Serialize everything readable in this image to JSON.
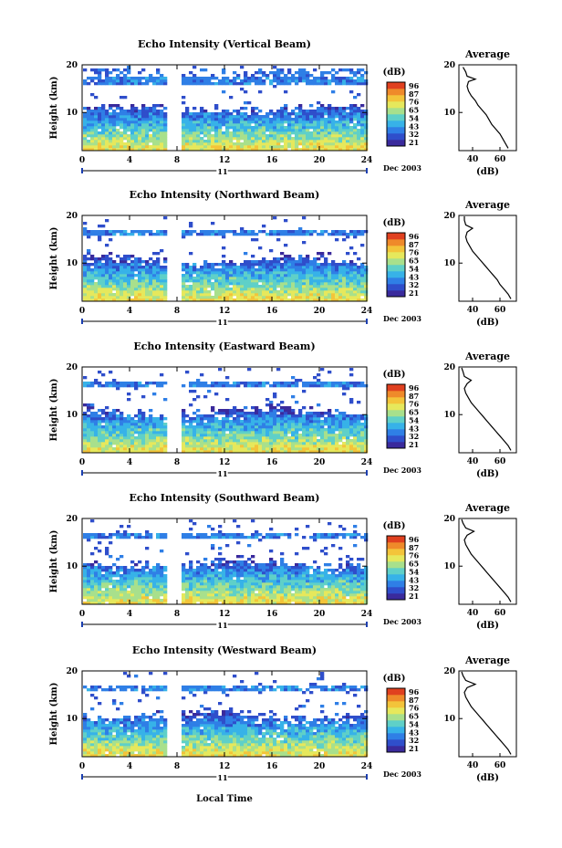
{
  "figure": {
    "xlabel": "Local Time",
    "day_label": "11",
    "date_label": "Dec 2003"
  },
  "chart_data": [
    {
      "type": "heatmap",
      "title": "Echo Intensity (Vertical Beam)",
      "ylabel": "Height (km)",
      "xlim": [
        0,
        24
      ],
      "ylim": [
        2,
        20
      ],
      "x_ticks": [
        0,
        4,
        8,
        12,
        16,
        20,
        24
      ],
      "y_ticks": [
        10,
        20
      ],
      "data_gap": [
        7.3,
        8.3
      ],
      "colorbar": {
        "title": "(dB)",
        "ticks": [
          96,
          87,
          76,
          65,
          54,
          43,
          32,
          21
        ]
      },
      "profile": {
        "title": "Average",
        "xlabel": "(dB)",
        "x_ticks": [
          40,
          60
        ],
        "xlim": [
          30,
          72
        ],
        "ylim": [
          2,
          20
        ],
        "y_ticks": [
          10,
          20
        ],
        "points": [
          [
            66,
            2.5
          ],
          [
            64,
            3.5
          ],
          [
            62,
            4.5
          ],
          [
            60,
            5.5
          ],
          [
            57,
            6.5
          ],
          [
            54,
            7.5
          ],
          [
            52,
            8.5
          ],
          [
            50,
            9.5
          ],
          [
            47,
            10.5
          ],
          [
            44,
            11.5
          ],
          [
            42,
            12.5
          ],
          [
            39,
            13.5
          ],
          [
            37,
            14.5
          ],
          [
            36,
            15.5
          ],
          [
            37,
            16.5
          ],
          [
            42,
            17
          ],
          [
            36,
            17.6
          ],
          [
            35,
            18.5
          ],
          [
            33,
            19.5
          ]
        ]
      }
    },
    {
      "type": "heatmap",
      "title": "Echo Intensity (Northward Beam)",
      "ylabel": "Height (km)",
      "xlim": [
        0,
        24
      ],
      "ylim": [
        2,
        20
      ],
      "x_ticks": [
        0,
        4,
        8,
        12,
        16,
        20,
        24
      ],
      "y_ticks": [
        10,
        20
      ],
      "data_gap": [
        7.3,
        8.3
      ],
      "colorbar": {
        "title": "(dB)",
        "ticks": [
          96,
          87,
          76,
          65,
          54,
          43,
          32,
          21
        ]
      },
      "profile": {
        "title": "Average",
        "xlabel": "(dB)",
        "x_ticks": [
          40,
          60
        ],
        "xlim": [
          30,
          72
        ],
        "ylim": [
          2,
          20
        ],
        "y_ticks": [
          10,
          20
        ],
        "points": [
          [
            68,
            2.5
          ],
          [
            66,
            3.5
          ],
          [
            63,
            4.5
          ],
          [
            60,
            5.5
          ],
          [
            58,
            6.5
          ],
          [
            55,
            7.5
          ],
          [
            52,
            8.5
          ],
          [
            49,
            9.5
          ],
          [
            46,
            10.5
          ],
          [
            43,
            11.5
          ],
          [
            40,
            12.5
          ],
          [
            38,
            13.5
          ],
          [
            36,
            14.5
          ],
          [
            35,
            15.5
          ],
          [
            36,
            16.5
          ],
          [
            40,
            17.3
          ],
          [
            35,
            18
          ],
          [
            34,
            19
          ],
          [
            34,
            19.8
          ]
        ]
      }
    },
    {
      "type": "heatmap",
      "title": "Echo Intensity (Eastward Beam)",
      "ylabel": "Height (km)",
      "xlim": [
        0,
        24
      ],
      "ylim": [
        2,
        20
      ],
      "x_ticks": [
        0,
        4,
        8,
        12,
        16,
        20,
        24
      ],
      "y_ticks": [
        10,
        20
      ],
      "data_gap": [
        7.3,
        8.3
      ],
      "colorbar": {
        "title": "(dB)",
        "ticks": [
          96,
          87,
          76,
          65,
          54,
          43,
          32,
          21
        ]
      },
      "profile": {
        "title": "Average",
        "xlabel": "(dB)",
        "x_ticks": [
          40,
          60
        ],
        "xlim": [
          30,
          72
        ],
        "ylim": [
          2,
          20
        ],
        "y_ticks": [
          10,
          20
        ],
        "points": [
          [
            68,
            2.5
          ],
          [
            66,
            3.5
          ],
          [
            63,
            4.5
          ],
          [
            60,
            5.5
          ],
          [
            57,
            6.5
          ],
          [
            54,
            7.5
          ],
          [
            51,
            8.5
          ],
          [
            48,
            9.5
          ],
          [
            45,
            10.5
          ],
          [
            42,
            11.5
          ],
          [
            39,
            12.5
          ],
          [
            37,
            13.5
          ],
          [
            35,
            14.5
          ],
          [
            34,
            15.5
          ],
          [
            36,
            16.5
          ],
          [
            39,
            17.2
          ],
          [
            34,
            18
          ],
          [
            33,
            19
          ],
          [
            32,
            19.8
          ]
        ]
      }
    },
    {
      "type": "heatmap",
      "title": "Echo Intensity (Southward Beam)",
      "ylabel": "Height (km)",
      "xlim": [
        0,
        24
      ],
      "ylim": [
        2,
        20
      ],
      "x_ticks": [
        0,
        4,
        8,
        12,
        16,
        20,
        24
      ],
      "y_ticks": [
        10,
        20
      ],
      "data_gap": [
        7.3,
        8.3
      ],
      "colorbar": {
        "title": "(dB)",
        "ticks": [
          96,
          87,
          76,
          65,
          54,
          43,
          32,
          21
        ]
      },
      "profile": {
        "title": "Average",
        "xlabel": "(dB)",
        "x_ticks": [
          40,
          60
        ],
        "xlim": [
          30,
          72
        ],
        "ylim": [
          2,
          20
        ],
        "y_ticks": [
          10,
          20
        ],
        "points": [
          [
            68,
            2.5
          ],
          [
            66,
            3.5
          ],
          [
            63,
            4.5
          ],
          [
            60,
            5.5
          ],
          [
            57,
            6.5
          ],
          [
            54,
            7.5
          ],
          [
            51,
            8.5
          ],
          [
            48,
            9.5
          ],
          [
            45,
            10.5
          ],
          [
            42,
            11.5
          ],
          [
            39,
            12.5
          ],
          [
            37,
            13.5
          ],
          [
            35,
            14.5
          ],
          [
            34,
            15.5
          ],
          [
            36,
            16.5
          ],
          [
            41,
            17.3
          ],
          [
            35,
            18
          ],
          [
            33,
            19
          ],
          [
            32,
            19.8
          ]
        ]
      }
    },
    {
      "type": "heatmap",
      "title": "Echo Intensity (Westward Beam)",
      "ylabel": "Height (km)",
      "xlim": [
        0,
        24
      ],
      "ylim": [
        2,
        20
      ],
      "x_ticks": [
        0,
        4,
        8,
        12,
        16,
        20,
        24
      ],
      "y_ticks": [
        10,
        20
      ],
      "data_gap": [
        7.3,
        8.3
      ],
      "colorbar": {
        "title": "(dB)",
        "ticks": [
          96,
          87,
          76,
          65,
          54,
          43,
          32,
          21
        ]
      },
      "profile": {
        "title": "Average",
        "xlabel": "(dB)",
        "x_ticks": [
          40,
          60
        ],
        "xlim": [
          30,
          72
        ],
        "ylim": [
          2,
          20
        ],
        "y_ticks": [
          10,
          20
        ],
        "points": [
          [
            68,
            2.5
          ],
          [
            66,
            3.5
          ],
          [
            63,
            4.5
          ],
          [
            60,
            5.5
          ],
          [
            57,
            6.5
          ],
          [
            54,
            7.5
          ],
          [
            51,
            8.5
          ],
          [
            48,
            9.5
          ],
          [
            45,
            10.5
          ],
          [
            42,
            11.5
          ],
          [
            39,
            12.5
          ],
          [
            37,
            13.5
          ],
          [
            35,
            14.5
          ],
          [
            34,
            15.5
          ],
          [
            36,
            16.5
          ],
          [
            42,
            17.2
          ],
          [
            35,
            18
          ],
          [
            33,
            19
          ],
          [
            32,
            19.8
          ]
        ]
      }
    }
  ],
  "colormap": [
    "#3a2a9c",
    "#2f4ecb",
    "#2f7fe6",
    "#37b2e8",
    "#5fd0c8",
    "#a8e08c",
    "#e6e85c",
    "#f3c43a",
    "#ef8a2a",
    "#e0401f"
  ]
}
